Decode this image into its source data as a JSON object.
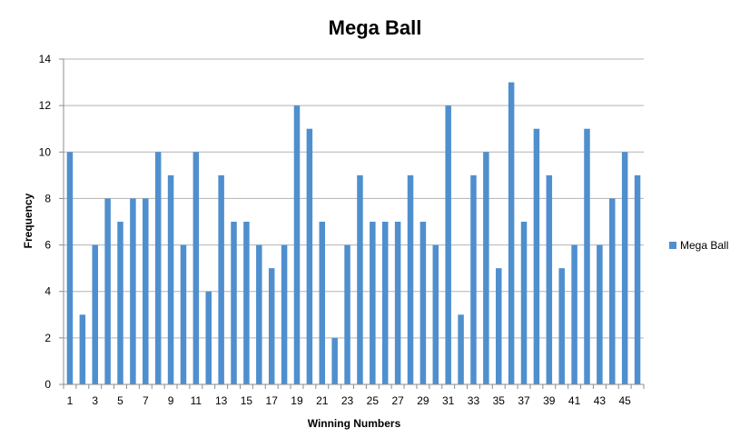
{
  "chart_data": {
    "type": "bar",
    "title": "Mega Ball",
    "xlabel": "Winning Numbers",
    "ylabel": "Frequency",
    "ylim": [
      0,
      14
    ],
    "yticks": [
      0,
      2,
      4,
      6,
      8,
      10,
      12,
      14
    ],
    "categories": [
      1,
      2,
      3,
      4,
      5,
      6,
      7,
      8,
      9,
      10,
      11,
      12,
      13,
      14,
      15,
      16,
      17,
      18,
      19,
      20,
      21,
      22,
      23,
      24,
      25,
      26,
      27,
      28,
      29,
      30,
      31,
      32,
      33,
      34,
      35,
      36,
      37,
      38,
      39,
      40,
      41,
      42,
      43,
      44,
      45,
      46
    ],
    "x_tick_labels": [
      "1",
      "3",
      "5",
      "7",
      "9",
      "11",
      "13",
      "15",
      "17",
      "19",
      "21",
      "23",
      "25",
      "27",
      "29",
      "31",
      "33",
      "35",
      "37",
      "39",
      "41",
      "43",
      "45"
    ],
    "series": [
      {
        "name": "Mega Ball",
        "color": "#4f8fce",
        "values": [
          10,
          3,
          6,
          8,
          7,
          8,
          8,
          10,
          9,
          6,
          10,
          4,
          9,
          7,
          7,
          6,
          5,
          6,
          12,
          11,
          7,
          2,
          6,
          9,
          7,
          7,
          7,
          9,
          7,
          6,
          12,
          3,
          9,
          10,
          5,
          13,
          7,
          11,
          9,
          5,
          6,
          11,
          6,
          8,
          10,
          9
        ]
      }
    ],
    "grid": true,
    "legend": "right"
  }
}
